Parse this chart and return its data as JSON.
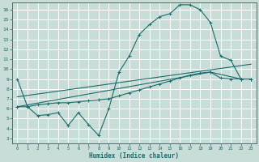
{
  "title": "",
  "xlabel": "Humidex (Indice chaleur)",
  "ylabel": "",
  "bg_color": "#c8ddd8",
  "grid_color": "#ffffff",
  "line_color": "#1a6b6b",
  "xlim": [
    -0.5,
    23.5
  ],
  "ylim": [
    2.5,
    16.7
  ],
  "xticks": [
    0,
    1,
    2,
    3,
    4,
    5,
    6,
    7,
    8,
    9,
    10,
    11,
    12,
    13,
    14,
    15,
    16,
    17,
    18,
    19,
    20,
    21,
    22,
    23
  ],
  "yticks": [
    3,
    4,
    5,
    6,
    7,
    8,
    9,
    10,
    11,
    12,
    13,
    14,
    15,
    16
  ],
  "line1_x": [
    0,
    1,
    2,
    3,
    4,
    5,
    6,
    7,
    8,
    9,
    10,
    11,
    12,
    13,
    14,
    15,
    16,
    17,
    18,
    19,
    20,
    21,
    22,
    23
  ],
  "line1_y": [
    9.0,
    6.2,
    5.3,
    5.4,
    5.6,
    4.3,
    5.6,
    4.4,
    3.3,
    6.0,
    9.7,
    11.3,
    13.5,
    14.5,
    15.3,
    15.6,
    16.5,
    16.5,
    16.0,
    14.7,
    11.3,
    10.9,
    9.0,
    9.0
  ],
  "line2_x": [
    0,
    1,
    2,
    3,
    4,
    5,
    6,
    7,
    8,
    9,
    10,
    11,
    12,
    13,
    14,
    15,
    16,
    17,
    18,
    19,
    20,
    21,
    22,
    23
  ],
  "line2_y": [
    6.2,
    6.2,
    6.4,
    6.5,
    6.6,
    6.6,
    6.7,
    6.8,
    6.9,
    7.0,
    7.3,
    7.6,
    7.9,
    8.2,
    8.5,
    8.8,
    9.1,
    9.4,
    9.6,
    9.7,
    9.1,
    9.0,
    9.0,
    9.0
  ],
  "line3_x": [
    0,
    23
  ],
  "line3_y": [
    7.2,
    10.5
  ],
  "line4_x": [
    0,
    19,
    22,
    23
  ],
  "line4_y": [
    6.2,
    9.7,
    9.0,
    9.0
  ],
  "marker": "+"
}
